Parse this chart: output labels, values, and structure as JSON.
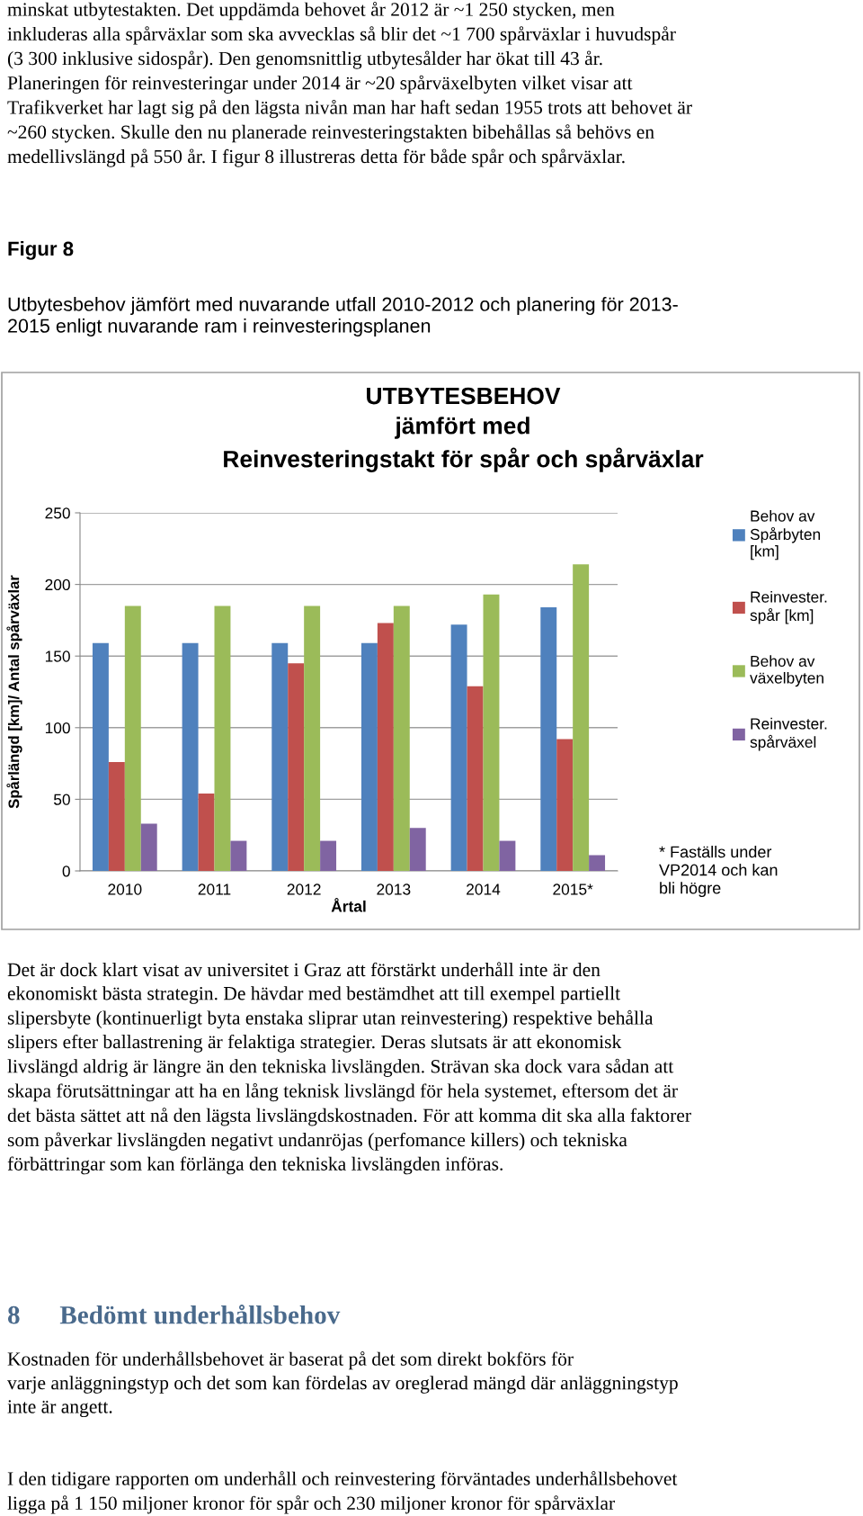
{
  "chart_data": {
    "type": "bar",
    "title": "UTBYTESBEHOV\njämfört med\nReinvesteringstakt för spår och spårväxlar",
    "xlabel": "Årtal",
    "ylabel": "Spårlängd [km]/ Antal spårväxlar",
    "categories": [
      "2010",
      "2011",
      "2012",
      "2013",
      "2014",
      "2015*"
    ],
    "series": [
      {
        "name": "Behov av\nSpårbyten\n[km]",
        "color": "#4f81bd",
        "values": [
          159,
          159,
          159,
          159,
          172,
          184
        ]
      },
      {
        "name": "Reinvester.\nspår [km]",
        "color": "#c0504d",
        "values": [
          76,
          54,
          145,
          173,
          129,
          92
        ]
      },
      {
        "name": "Behov av\nväxelbyten",
        "color": "#9bbb59",
        "values": [
          185,
          185,
          185,
          185,
          193,
          214
        ]
      },
      {
        "name": "Reinvester.\nspårväxel",
        "color": "#8064a2",
        "values": [
          33,
          21,
          21,
          30,
          21,
          11
        ]
      }
    ],
    "ylim": [
      0,
      250
    ],
    "yticks": [
      0,
      50,
      100,
      150,
      200,
      250
    ],
    "grid": "y",
    "legend": "right",
    "annotations": [
      "minskat utbytestakten. Det uppdämda behovet år 2012 är ~1 250 stycken, men\ninkluderas alla spårväxlar som ska avvecklas så blir det ~1 700 spårväxlar i huvudspår\n(3 300 inklusive sidospår). Den genomsnittlig utbytesålder har ökat till 43 år.\nPlaneringen för reinvesteringar under 2014 är ~20 spårväxelbyten vilket visar att\nTrafikverket har lagt sig på den lägsta nivån man har haft sedan 1955 trots att behovet är\n~260 stycken. Skulle den nu planerade reinvesteringstakten bibehållas så behövs en\nmedellivslängd på 550 år. I figur 8 illustreras detta för både spår och spårväxlar.",
      "Figur 8",
      "Utbytesbehov jämfört med nuvarande utfall 2010-2012 och planering för 2013-\n2015 enligt nuvarande ram i reinvesteringsplanen",
      "* Faställs under\nVP2014 och kan\nbli högre",
      "Det är dock klart visat av universitet i Graz att förstärkt underhåll inte är den\nekonomiskt bästa strategin. De hävdar med bestämdhet att till exempel partiellt\nslipersbyte (kontinuerligt byta enstaka sliprar utan reinvestering) respektive behålla\nslipers efter ballastrening är felaktiga strategier. Deras slutsats är att ekonomisk\nlivslängd aldrig är längre än den tekniska livslängden. Strävan ska dock vara sådan att\nskapa förutsättningar att ha en lång teknisk livslängd för hela systemet, eftersom det är\ndet bästa sättet att nå den lägsta livslängdskostnaden. För att komma dit ska alla faktorer\nsom påverkar livslängden negativt undanröjas (perfomance killers) och tekniska\nförbättringar som kan förlänga den tekniska livslängden införas.",
      "8      Bedömt underhållsbehov",
      "Kostnaden för underhållsbehovet är baserat på det som direkt bokförs för\nvarje anläggningstyp och det som kan fördelas av oreglerad mängd där anläggningstyp\ninte är angett.",
      "I den tidigare rapporten om underhåll och reinvestering förväntades underhållsbehovet\nligga på 1 150 miljoner kronor för spår och 230 miljoner kronor för spårväxlar"
    ]
  }
}
